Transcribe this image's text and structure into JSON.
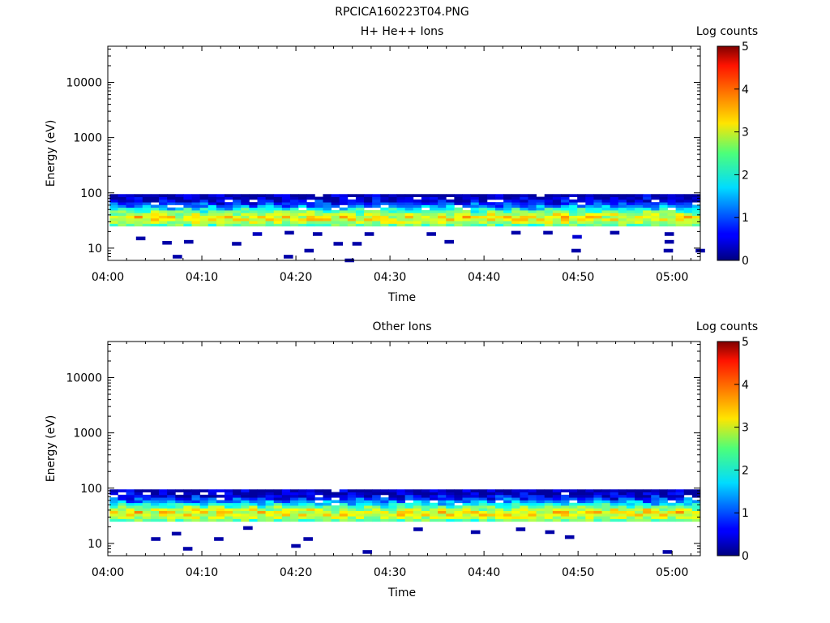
{
  "figure_title": "RPCICA160223T04.PNG",
  "chart_data": [
    {
      "type": "heatmap",
      "title": "H+ He++ Ions",
      "xlabel": "Time",
      "ylabel": "Energy (eV)",
      "colorbar_label": "Log counts",
      "x_ticks": [
        "04:00",
        "04:10",
        "04:20",
        "04:30",
        "04:40",
        "04:50",
        "05:00"
      ],
      "x_range_min": [
        0,
        63
      ],
      "y_scale": "log",
      "y_range": [
        6,
        45000
      ],
      "y_ticks": [
        "10",
        "100",
        "1000",
        "10000"
      ],
      "color_range": [
        0,
        5
      ],
      "color_ticks": [
        "0",
        "1",
        "2",
        "3",
        "4",
        "5"
      ],
      "colormap": "jet",
      "energy_band_eV": [
        25,
        95
      ],
      "peak_energy_eV": 35,
      "peak_log_counts": 3.1,
      "sparse_points": [
        {
          "t": 3.0,
          "e": 15,
          "v": 0.2
        },
        {
          "t": 5.8,
          "e": 12.5,
          "v": 0.2
        },
        {
          "t": 6.9,
          "e": 7,
          "v": 0.2
        },
        {
          "t": 8.1,
          "e": 13,
          "v": 0.2
        },
        {
          "t": 13.2,
          "e": 12,
          "v": 0.2
        },
        {
          "t": 15.4,
          "e": 18,
          "v": 0.3
        },
        {
          "t": 18.7,
          "e": 7,
          "v": 0.2
        },
        {
          "t": 18.8,
          "e": 19,
          "v": 0.2
        },
        {
          "t": 20.9,
          "e": 9,
          "v": 0.2
        },
        {
          "t": 21.8,
          "e": 18,
          "v": 0.2
        },
        {
          "t": 24.0,
          "e": 12,
          "v": 0.2
        },
        {
          "t": 25.2,
          "e": 6,
          "v": 0.2
        },
        {
          "t": 26.0,
          "e": 12,
          "v": 0.2
        },
        {
          "t": 27.3,
          "e": 18,
          "v": 0.2
        },
        {
          "t": 33.9,
          "e": 18,
          "v": 0.2
        },
        {
          "t": 35.8,
          "e": 13,
          "v": 0.2
        },
        {
          "t": 42.9,
          "e": 19,
          "v": 0.2
        },
        {
          "t": 46.3,
          "e": 19,
          "v": 0.2
        },
        {
          "t": 49.3,
          "e": 9,
          "v": 0.2
        },
        {
          "t": 49.4,
          "e": 16,
          "v": 0.4
        },
        {
          "t": 53.4,
          "e": 19,
          "v": 0.2
        },
        {
          "t": 59.1,
          "e": 9,
          "v": 0.2
        },
        {
          "t": 59.2,
          "e": 13,
          "v": 0.2
        },
        {
          "t": 59.2,
          "e": 18,
          "v": 0.2
        },
        {
          "t": 62.5,
          "e": 9,
          "v": 0.2
        }
      ]
    },
    {
      "type": "heatmap",
      "title": "Other Ions",
      "xlabel": "Time",
      "ylabel": "Energy (eV)",
      "colorbar_label": "Log counts",
      "x_ticks": [
        "04:00",
        "04:10",
        "04:20",
        "04:30",
        "04:40",
        "04:50",
        "05:00"
      ],
      "x_range_min": [
        0,
        63
      ],
      "y_scale": "log",
      "y_range": [
        6,
        45000
      ],
      "y_ticks": [
        "10",
        "100",
        "1000",
        "10000"
      ],
      "color_range": [
        0,
        5
      ],
      "color_ticks": [
        "0",
        "1",
        "2",
        "3",
        "4",
        "5"
      ],
      "colormap": "jet",
      "energy_band_eV": [
        25,
        95
      ],
      "peak_energy_eV": 35,
      "peak_log_counts": 3.1,
      "sparse_points": [
        {
          "t": 4.6,
          "e": 12,
          "v": 0.2
        },
        {
          "t": 6.8,
          "e": 15,
          "v": 0.2
        },
        {
          "t": 8.0,
          "e": 8,
          "v": 0.2
        },
        {
          "t": 11.3,
          "e": 12,
          "v": 0.2
        },
        {
          "t": 14.4,
          "e": 19,
          "v": 0.2
        },
        {
          "t": 19.5,
          "e": 9,
          "v": 0.2
        },
        {
          "t": 20.8,
          "e": 12,
          "v": 0.2
        },
        {
          "t": 27.1,
          "e": 7,
          "v": 0.2
        },
        {
          "t": 32.5,
          "e": 18,
          "v": 0.2
        },
        {
          "t": 38.6,
          "e": 16,
          "v": 0.2
        },
        {
          "t": 43.4,
          "e": 18,
          "v": 0.2
        },
        {
          "t": 46.5,
          "e": 16,
          "v": 0.2
        },
        {
          "t": 48.6,
          "e": 13,
          "v": 0.2
        },
        {
          "t": 59.0,
          "e": 7,
          "v": 0.2
        }
      ]
    }
  ]
}
